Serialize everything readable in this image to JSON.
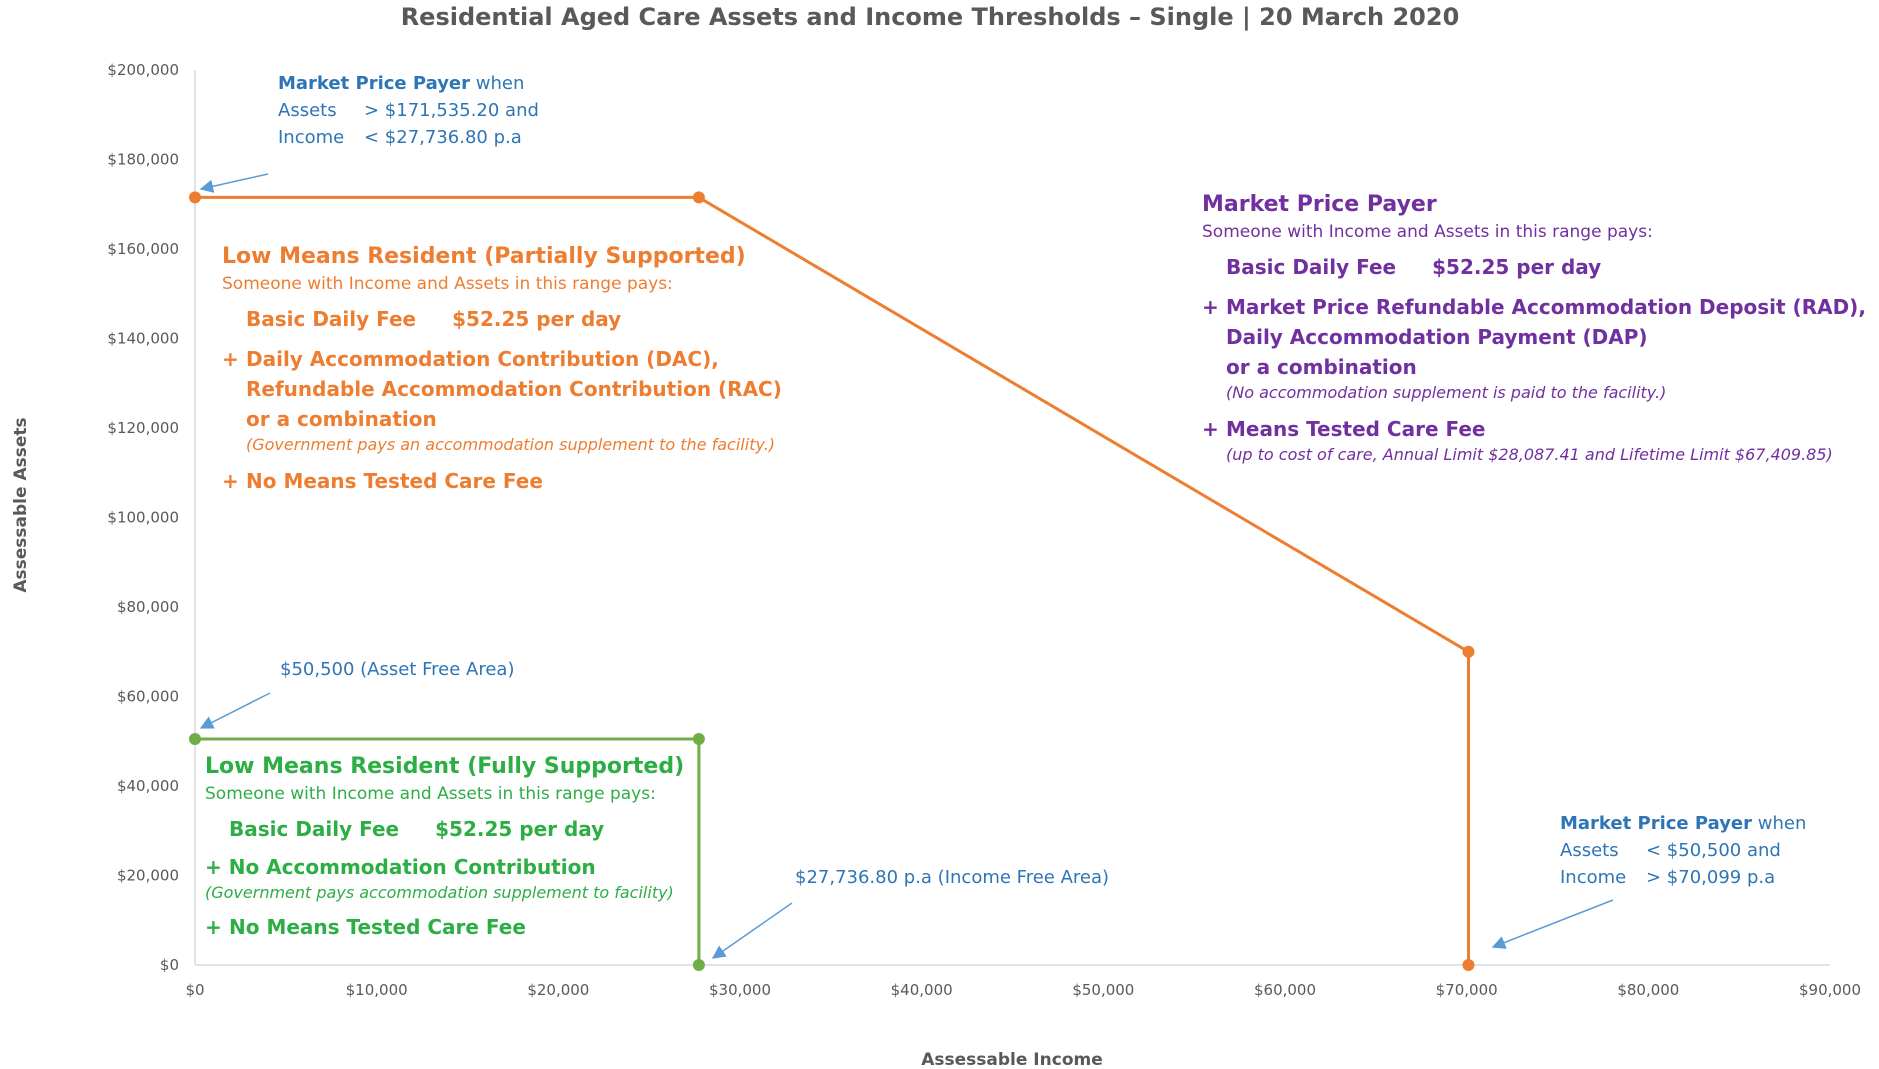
{
  "chart_data": {
    "type": "line",
    "title": "Residential Aged Care Assets and Income Thresholds – Single  |  20 March 2020",
    "xlabel": "Assessable Income",
    "ylabel": "Assessable Assets",
    "xlim": [
      0,
      90000
    ],
    "ylim": [
      0,
      200000
    ],
    "x_ticks": [
      "$0",
      "$10,000",
      "$20,000",
      "$30,000",
      "$40,000",
      "$50,000",
      "$60,000",
      "$70,000",
      "$80,000",
      "$90,000"
    ],
    "y_ticks": [
      "$0",
      "$20,000",
      "$40,000",
      "$60,000",
      "$80,000",
      "$100,000",
      "$120,000",
      "$140,000",
      "$160,000",
      "$180,000",
      "$200,000"
    ],
    "grid": false,
    "series": [
      {
        "color": "#ED7D31",
        "x": [
          0,
          27736.8,
          70099,
          70099
        ],
        "y": [
          171535.2,
          171535.2,
          70000,
          0
        ]
      },
      {
        "color": "#70AD47",
        "x": [
          0,
          27736.8,
          27736.8
        ],
        "y": [
          50500,
          50500,
          0
        ]
      }
    ],
    "annotations": {
      "top_left": {
        "title": "Market Price Payer",
        "title_suffix": "when",
        "assets_label": "Assets",
        "assets_value": "> $171,535.20 and",
        "income_label": "Income",
        "income_value": "< $27,736.80 p.a"
      },
      "asset_free": "$50,500 (Asset Free Area)",
      "income_free": "$27,736.80 p.a (Income Free Area)",
      "bottom_right": {
        "title": "Market Price Payer",
        "title_suffix": "when",
        "assets_label": "Assets",
        "assets_value": "< $50,500 and",
        "income_label": "Income",
        "income_value": "> $70,099 p.a"
      },
      "partial": {
        "heading": "Low Means Resident (Partially Supported)",
        "sub": "Someone with Income and Assets in this range pays:",
        "fee_label": "Basic Daily Fee",
        "fee_value": "$52.25 per day",
        "plus": "+",
        "item1_line1": "Daily Accommodation Contribution (DAC),",
        "item1_line2": "Refundable Accommodation Contribution (RAC)",
        "item1_line3": "or a combination",
        "item1_note": "(Government pays an accommodation supplement to the facility.)",
        "item2": "No Means Tested Care Fee"
      },
      "full": {
        "heading": "Low Means Resident (Fully Supported)",
        "sub": "Someone with Income and Assets in this range pays:",
        "fee_label": "Basic Daily Fee",
        "fee_value": "$52.25 per day",
        "plus": "+",
        "item1": "No Accommodation Contribution",
        "item1_note": "(Government pays accommodation supplement to facility)",
        "item2": "No Means Tested Care Fee"
      },
      "market": {
        "heading": "Market Price Payer",
        "sub": "Someone with Income and Assets in this range pays:",
        "fee_label": "Basic Daily Fee",
        "fee_value": "$52.25 per day",
        "plus": "+",
        "item1_line1": "Market Price Refundable Accommodation Deposit (RAD),",
        "item1_line2": "Daily Accommodation Payment (DAP)",
        "item1_line3": "or a combination",
        "item1_note": "(No accommodation supplement is paid to the facility.)",
        "item2": "Means Tested Care Fee",
        "item2_note": "(up to cost of care, Annual Limit $28,087.41 and Lifetime Limit $67,409.85)"
      }
    }
  }
}
